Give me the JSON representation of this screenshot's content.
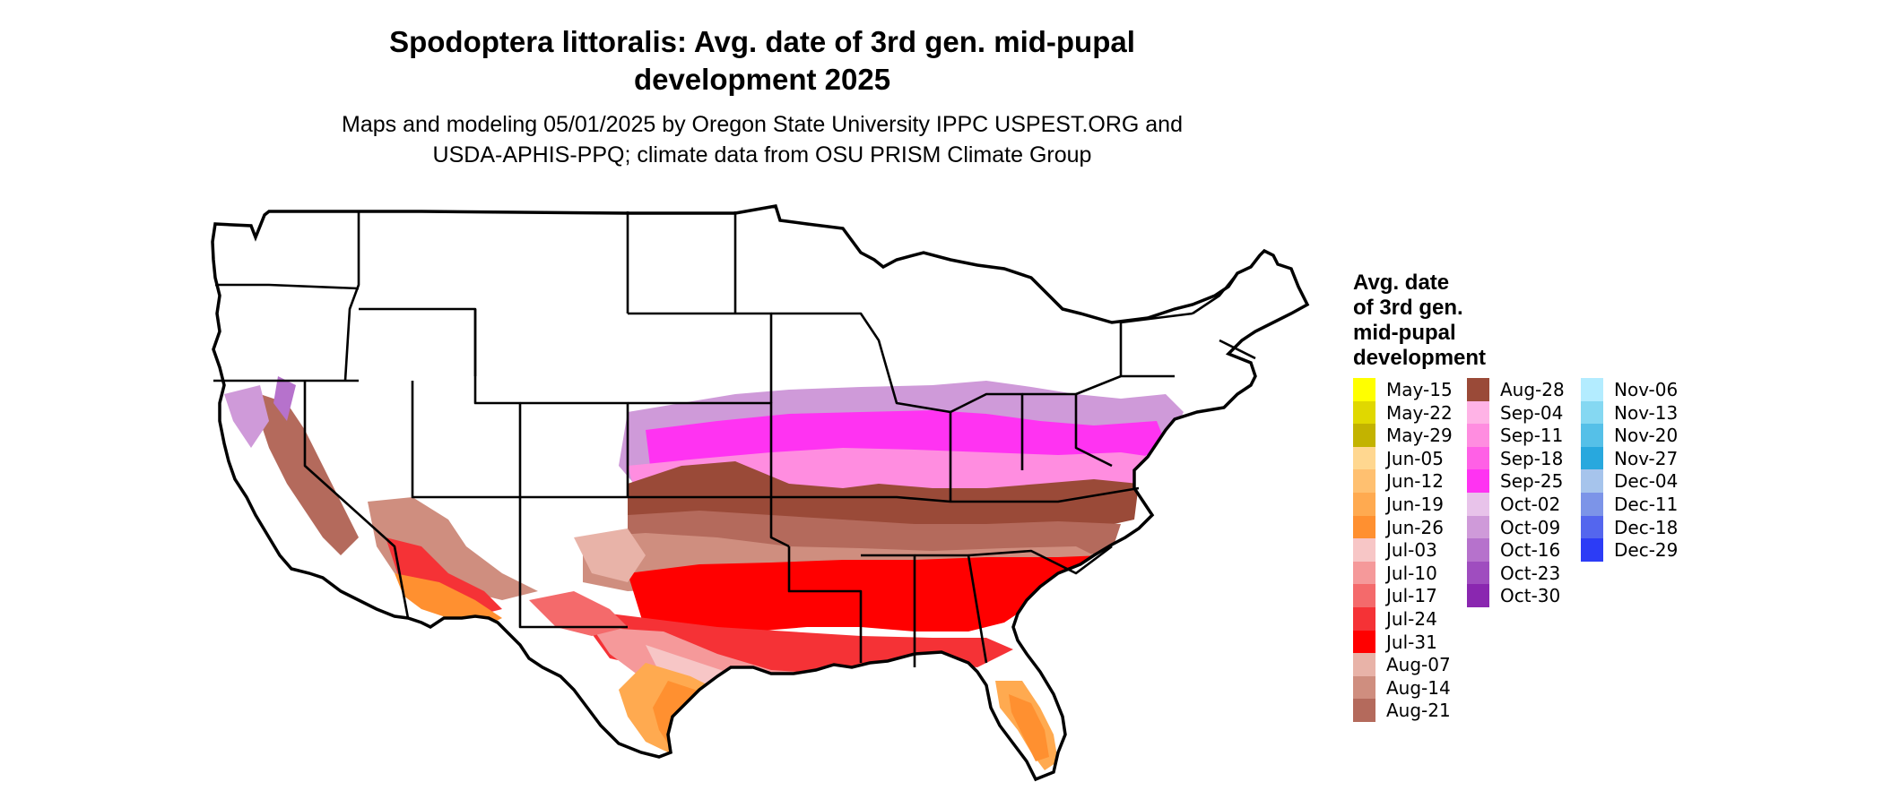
{
  "title": {
    "line1": "Spodoptera littoralis: Avg. date of 3rd gen. mid-pupal",
    "line2": "development 2025"
  },
  "subtitle": {
    "line1": "Maps and modeling 05/01/2025 by Oregon State University IPPC USPEST.ORG and",
    "line2": "USDA-APHIS-PPQ; climate data from OSU PRISM Climate Group"
  },
  "legend": {
    "title_lines": [
      "Avg. date",
      "of 3rd gen.",
      "mid-pupal",
      "development"
    ],
    "items": [
      {
        "label": "May-15",
        "color": "#ffff00"
      },
      {
        "label": "May-22",
        "color": "#e0d800"
      },
      {
        "label": "May-29",
        "color": "#c3b300"
      },
      {
        "label": "Jun-05",
        "color": "#ffd790"
      },
      {
        "label": "Jun-12",
        "color": "#ffc070"
      },
      {
        "label": "Jun-19",
        "color": "#ffaa50"
      },
      {
        "label": "Jun-26",
        "color": "#ff9030"
      },
      {
        "label": "Jul-03",
        "color": "#f7c6c6"
      },
      {
        "label": "Jul-10",
        "color": "#f5999a"
      },
      {
        "label": "Jul-17",
        "color": "#f46a6b"
      },
      {
        "label": "Jul-24",
        "color": "#f53236"
      },
      {
        "label": "Jul-31",
        "color": "#ff0000"
      },
      {
        "label": "Aug-07",
        "color": "#e8b3a8"
      },
      {
        "label": "Aug-14",
        "color": "#cf8e7f"
      },
      {
        "label": "Aug-21",
        "color": "#b46a5c"
      },
      {
        "label": "Aug-28",
        "color": "#9a4a38"
      },
      {
        "label": "Sep-04",
        "color": "#ffb3e6"
      },
      {
        "label": "Sep-11",
        "color": "#ff8de0"
      },
      {
        "label": "Sep-18",
        "color": "#ff60e6"
      },
      {
        "label": "Sep-25",
        "color": "#ff33f2"
      },
      {
        "label": "Oct-02",
        "color": "#e8c3ea"
      },
      {
        "label": "Oct-09",
        "color": "#cf9ad9"
      },
      {
        "label": "Oct-16",
        "color": "#b672cc"
      },
      {
        "label": "Oct-23",
        "color": "#9f4dbf"
      },
      {
        "label": "Oct-30",
        "color": "#8a27b0"
      },
      {
        "label": "Nov-06",
        "color": "#b3ecff"
      },
      {
        "label": "Nov-13",
        "color": "#85d8f2"
      },
      {
        "label": "Nov-20",
        "color": "#55c0e8"
      },
      {
        "label": "Nov-27",
        "color": "#28a8de"
      },
      {
        "label": "Dec-04",
        "color": "#a6c4ec"
      },
      {
        "label": "Dec-11",
        "color": "#7c94e8"
      },
      {
        "label": "Dec-18",
        "color": "#5466ee"
      },
      {
        "label": "Dec-29",
        "color": "#2c3cf6"
      }
    ]
  },
  "map": {
    "region": "contiguous United States",
    "colors": {
      "outline": "#000000",
      "no_development": "#ffffff"
    }
  }
}
